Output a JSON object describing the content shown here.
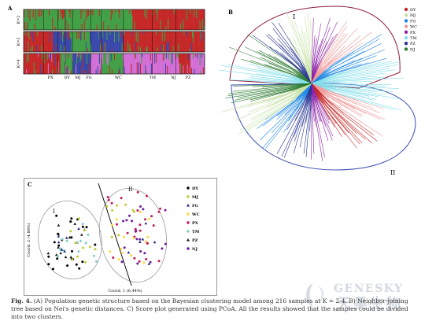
{
  "figure": {
    "caption_label": "Fig. 4.",
    "caption_text": "(A) Population genetic structure based on the Bayesian clustering model among 216 samples at K = 2-4. B) Neighbor-joining tree based on Nei's genetic distances. C) Score plot generated using PCoA. All the results showed that the samples could be divided into two clusters."
  },
  "panel_a": {
    "letter": "A",
    "row_labels": [
      "K=2",
      "K=3",
      "K=4"
    ],
    "population_labels": [
      "PX",
      "DY",
      "MJ",
      "FG",
      "WC",
      "TM",
      "NJ",
      "PZ"
    ]
  },
  "panel_b": {
    "letter": "B",
    "cluster_labels": [
      "I",
      "II"
    ],
    "legend": [
      {
        "label": "DY",
        "color": "#c62828"
      },
      {
        "label": "MJ",
        "color": "#c5e1a5"
      },
      {
        "label": "FG",
        "color": "#1e88e5"
      },
      {
        "label": "WC",
        "color": "#ef9a9a"
      },
      {
        "label": "PX",
        "color": "#8e24aa"
      },
      {
        "label": "TM",
        "color": "#80deea"
      },
      {
        "label": "PZ",
        "color": "#283593"
      },
      {
        "label": "NJ",
        "color": "#2e7d32"
      }
    ]
  },
  "panel_c": {
    "letter": "C",
    "cluster_labels": [
      "I",
      "II"
    ],
    "chart_data": {
      "type": "scatter",
      "xlabel": "Coord. 1 (6.44%)",
      "ylabel": "Coord. 2 (4.88%)",
      "legend": [
        {
          "label": "DY",
          "color": "#000000",
          "marker": "circle"
        },
        {
          "label": "MJ",
          "color": "#c0ca33",
          "marker": "circle"
        },
        {
          "label": "FG",
          "color": "#1a237e",
          "marker": "triangle"
        },
        {
          "label": "WC",
          "color": "#fdd835",
          "marker": "circle"
        },
        {
          "label": "PX",
          "color": "#c2185b",
          "marker": "circle"
        },
        {
          "label": "TM",
          "color": "#80cbc4",
          "marker": "circle"
        },
        {
          "label": "PZ",
          "color": "#111111",
          "marker": "triangle"
        },
        {
          "label": "NJ",
          "color": "#6a1b9a",
          "marker": "circle"
        }
      ]
    }
  },
  "watermark": {
    "text": "GENESKY",
    "subtext": "天昊生物"
  }
}
